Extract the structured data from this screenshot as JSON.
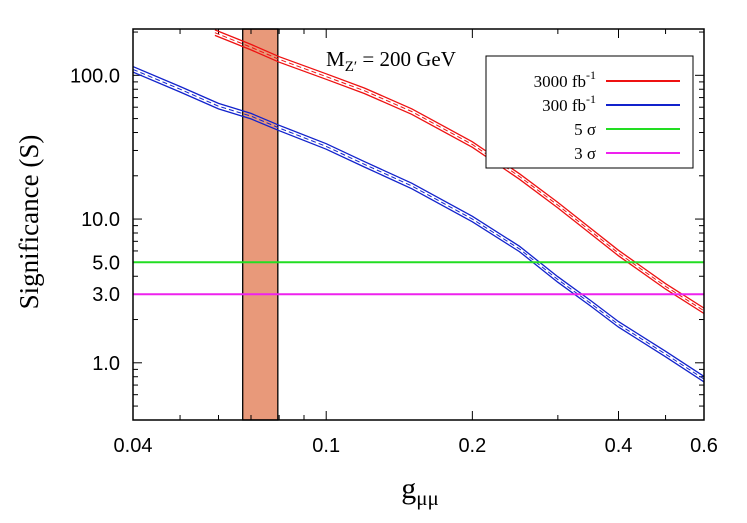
{
  "chart_data": {
    "type": "line",
    "annotation": {
      "main": "M",
      "sub": "Z′",
      "rest": " = 200 GeV"
    },
    "xlabel": {
      "main": "g",
      "sub": "μμ"
    },
    "ylabel": "Significance (S)",
    "x_scale": "log",
    "y_scale": "log",
    "xlim": [
      0.04,
      0.6
    ],
    "ylim": [
      0.4,
      210
    ],
    "x_ticks": [
      {
        "value": 0.04,
        "label": "0.04"
      },
      {
        "value": 0.1,
        "label": "0.1"
      },
      {
        "value": 0.2,
        "label": "0.2"
      },
      {
        "value": 0.4,
        "label": "0.4"
      },
      {
        "value": 0.6,
        "label": "0.6"
      }
    ],
    "x_minor_ticks": [
      0.05,
      0.06,
      0.07,
      0.08,
      0.09,
      0.3,
      0.5
    ],
    "y_ticks": [
      {
        "value": 1.0,
        "label": "1.0"
      },
      {
        "value": 3.0,
        "label": "3.0"
      },
      {
        "value": 5.0,
        "label": "5.0"
      },
      {
        "value": 10.0,
        "label": "10.0"
      },
      {
        "value": 100.0,
        "label": "100.0"
      }
    ],
    "y_minor_ticks": [
      0.5,
      0.6,
      0.7,
      0.8,
      0.9,
      2,
      4,
      6,
      7,
      8,
      9,
      20,
      30,
      40,
      50,
      60,
      70,
      80,
      90,
      200
    ],
    "band": {
      "x_min": 0.0673,
      "x_max": 0.0795,
      "color": "#e8997a"
    },
    "legend_position": "top-right",
    "series": [
      {
        "name": "3000 fb",
        "name_sup": "-1",
        "color": "#ee1111",
        "style": "band",
        "x": [
          0.059,
          0.07,
          0.08,
          0.1,
          0.12,
          0.15,
          0.2,
          0.25,
          0.3,
          0.4,
          0.5,
          0.6
        ],
        "y": [
          198,
          157,
          129,
          98,
          78,
          56,
          33,
          19.8,
          12.5,
          5.8,
          3.4,
          2.3
        ]
      },
      {
        "name": "300 fb",
        "name_sup": "-1",
        "color": "#1122cc",
        "style": "band",
        "x": [
          0.04,
          0.05,
          0.06,
          0.07,
          0.08,
          0.1,
          0.12,
          0.15,
          0.2,
          0.25,
          0.3,
          0.35,
          0.4,
          0.5,
          0.6
        ],
        "y": [
          110,
          80,
          61,
          52,
          43,
          32,
          24,
          17,
          10,
          6.2,
          3.8,
          2.6,
          1.85,
          1.15,
          0.77
        ]
      },
      {
        "name": "5 σ",
        "color": "#22dd22",
        "style": "line",
        "x": [
          0.04,
          0.6
        ],
        "y": [
          5,
          5
        ]
      },
      {
        "name": "3 σ",
        "color": "#ee22ee",
        "style": "line",
        "x": [
          0.04,
          0.6
        ],
        "y": [
          3,
          3
        ]
      }
    ]
  }
}
